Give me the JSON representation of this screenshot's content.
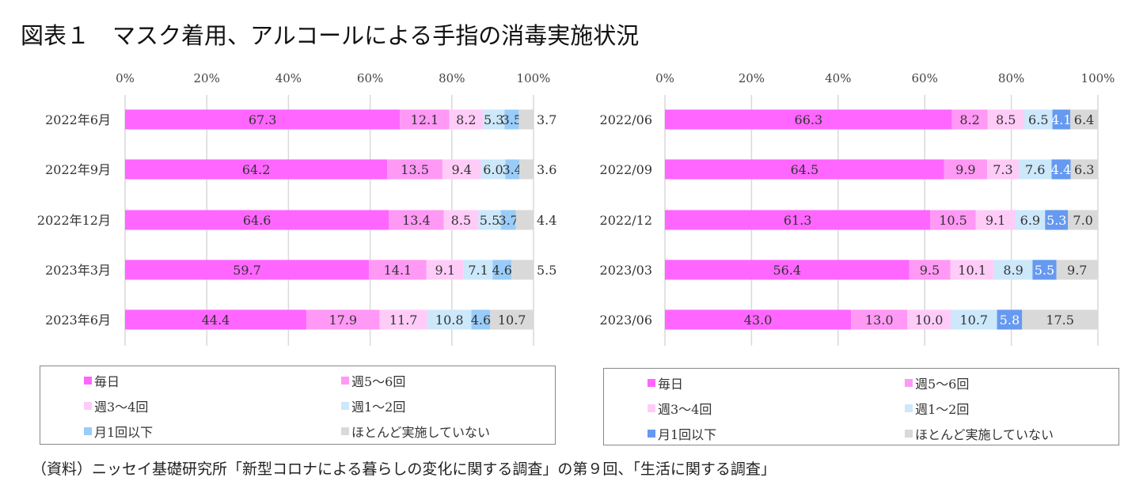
{
  "title": "図表１　マスク着用、アルコールによる手指の消毒実施状況",
  "source": "（資料）ニッセイ基礎研究所「新型コロナによる暮らしの変化に関する調査」の第９回、「生活に関する調査」",
  "chart_data": [
    {
      "type": "bar",
      "orientation": "horizontal",
      "stacked": true,
      "xlim": [
        0,
        100
      ],
      "xticks": [
        "0%",
        "20%",
        "40%",
        "60%",
        "80%",
        "100%"
      ],
      "grid": true,
      "legend_position": "bottom",
      "categories": [
        "2022年6月",
        "2022年9月",
        "2022年12月",
        "2023年3月",
        "2023年6月"
      ],
      "series": [
        {
          "name": "毎日",
          "color": "#FF66FF",
          "values": [
            67.3,
            64.2,
            64.6,
            59.7,
            44.4
          ]
        },
        {
          "name": "週5～6回",
          "color": "#FF99F5",
          "values": [
            12.1,
            13.5,
            13.4,
            14.1,
            17.9
          ]
        },
        {
          "name": "週3～4回",
          "color": "#FFCCF8",
          "values": [
            8.2,
            9.4,
            8.5,
            9.1,
            11.7
          ]
        },
        {
          "name": "週1～2回",
          "color": "#CCE8FA",
          "values": [
            5.3,
            6.0,
            5.5,
            7.1,
            10.8
          ]
        },
        {
          "name": "月1回以下",
          "color": "#99CCF8",
          "values": [
            3.5,
            3.4,
            3.7,
            4.6,
            4.6
          ]
        },
        {
          "name": "ほとんど実施していない",
          "color": "#D9D9D9",
          "values": [
            3.7,
            3.6,
            4.4,
            5.5,
            10.7
          ]
        }
      ]
    },
    {
      "type": "bar",
      "orientation": "horizontal",
      "stacked": true,
      "xlim": [
        0,
        100
      ],
      "xticks": [
        "0%",
        "20%",
        "40%",
        "60%",
        "80%",
        "100%"
      ],
      "grid": true,
      "legend_position": "bottom",
      "categories": [
        "2022/06",
        "2022/09",
        "2022/12",
        "2023/03",
        "2023/06"
      ],
      "series": [
        {
          "name": "毎日",
          "color": "#FF66FF",
          "values": [
            66.3,
            64.5,
            61.3,
            56.4,
            43.0
          ]
        },
        {
          "name": "週5～6回",
          "color": "#FF99F5",
          "values": [
            8.2,
            9.9,
            10.5,
            9.5,
            13.0
          ]
        },
        {
          "name": "週3～4回",
          "color": "#FFCCF8",
          "values": [
            8.5,
            7.3,
            9.1,
            10.1,
            10.0
          ]
        },
        {
          "name": "週1～2回",
          "color": "#CCE8FA",
          "values": [
            6.5,
            7.6,
            6.9,
            8.9,
            10.7
          ]
        },
        {
          "name": "月1回以下",
          "color": "#6699F0",
          "values": [
            4.1,
            4.4,
            5.3,
            5.5,
            5.8
          ]
        },
        {
          "name": "ほとんど実施していない",
          "color": "#D9D9D9",
          "values": [
            6.4,
            6.3,
            7.0,
            9.7,
            17.5
          ]
        }
      ]
    }
  ]
}
